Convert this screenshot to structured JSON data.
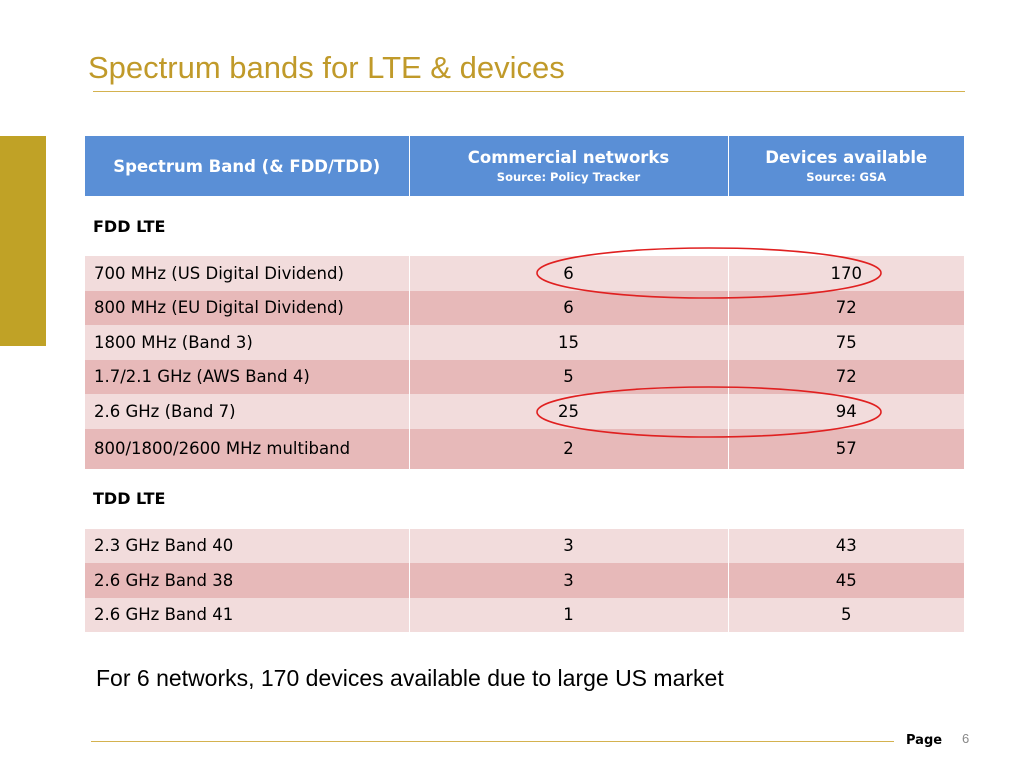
{
  "title": "Spectrum bands for LTE & devices",
  "table": {
    "headers": [
      {
        "label": "Spectrum Band (& FDD/TDD)",
        "source": ""
      },
      {
        "label": "Commercial networks",
        "source": "Source: Policy Tracker"
      },
      {
        "label": "Devices available",
        "source": "Source: GSA"
      }
    ],
    "sections": [
      {
        "label": "FDD LTE",
        "rows": [
          {
            "band": "700 MHz (US Digital Dividend)",
            "networks": "6",
            "devices": "170"
          },
          {
            "band": "800 MHz (EU Digital Dividend)",
            "networks": "6",
            "devices": "72"
          },
          {
            "band": "1800 MHz (Band 3)",
            "networks": "15",
            "devices": "75"
          },
          {
            "band": "1.7/2.1 GHz (AWS Band 4)",
            "networks": "5",
            "devices": "72"
          },
          {
            "band": "2.6 GHz (Band 7)",
            "networks": "25",
            "devices": "94"
          },
          {
            "band": "800/1800/2600 MHz multiband",
            "networks": "2",
            "devices": "57"
          }
        ]
      },
      {
        "label": "TDD LTE",
        "rows": [
          {
            "band": "2.3 GHz Band 40",
            "networks": "3",
            "devices": "43"
          },
          {
            "band": "2.6 GHz Band 38",
            "networks": "3",
            "devices": "45"
          },
          {
            "band": "2.6 GHz Band 41",
            "networks": "1",
            "devices": "5"
          }
        ]
      }
    ]
  },
  "footnote": "For 6 networks, 170 devices available due to large US market",
  "footer": {
    "page_label": "Page",
    "page_number": "6"
  },
  "colors": {
    "title": "#c09a2a",
    "accent_bar": "#c0a226",
    "header_bg": "#5a8fd6",
    "row_light": "#f2dcdc",
    "row_dark": "#e7b9b9",
    "highlight_ellipse": "#e02020"
  }
}
